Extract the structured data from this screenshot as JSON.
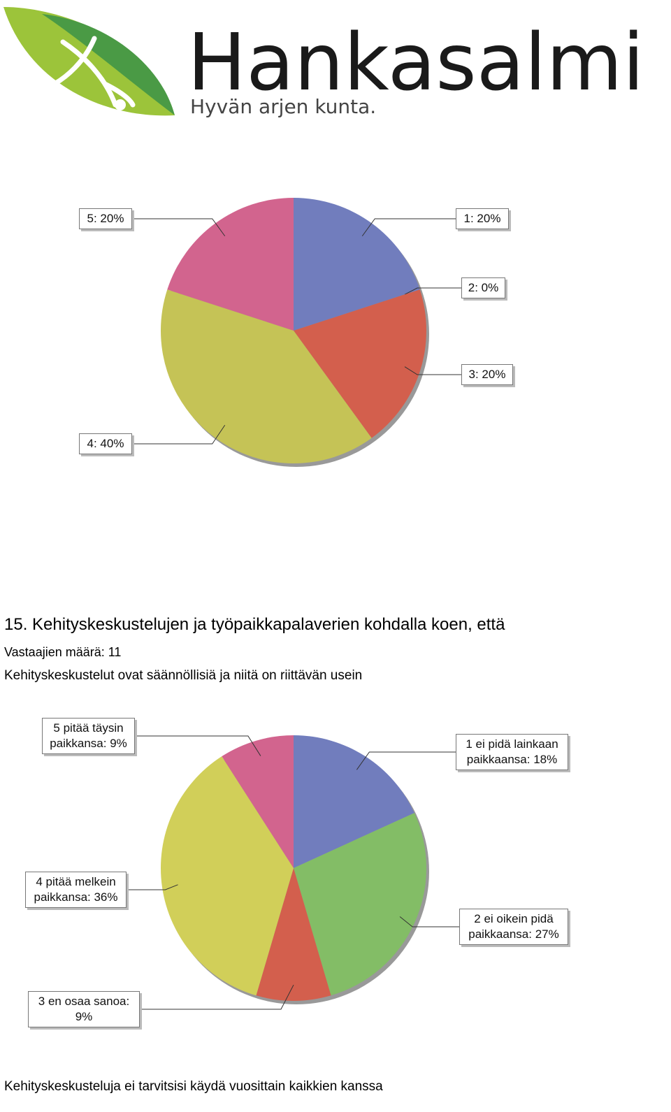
{
  "header": {
    "logo_name": "Hankasalmi",
    "tagline": "Hyvän arjen kunta."
  },
  "question": {
    "title": "15. Kehityskeskustelujen ja työpaikkapalaverien kohdalla koen, että",
    "respondents": "Vastaajien määrä: 11"
  },
  "chart_data": [
    {
      "type": "pie",
      "categories": [
        "1",
        "2",
        "3",
        "4",
        "5"
      ],
      "values": [
        20,
        0,
        20,
        40,
        20
      ],
      "value_labels": [
        "1: 20%",
        "2: 0%",
        "3: 20%",
        "4: 40%",
        "5: 20%"
      ],
      "colors": [
        "#717dbd",
        "#83bd66",
        "#d35f4d",
        "#c5c356",
        "#d2648e"
      ]
    },
    {
      "type": "pie",
      "title": "Kehityskeskustelut ovat säännöllisiä ja niitä on riittävän usein",
      "categories": [
        "1 ei pidä lainkaan paikkaansa",
        "2 ei oikein pidä paikkaansa",
        "3 en osaa sanoa",
        "4 pitää melkein paikkansa",
        "5 pitää täysin paikkansa"
      ],
      "values": [
        18,
        27,
        9,
        36,
        9
      ],
      "value_labels": [
        "1 ei pidä lainkaan paikkaansa: 18%",
        "2 ei oikein pidä paikkaansa: 27%",
        "3 en osaa sanoa: 9%",
        "4 pitää melkein paikkansa: 36%",
        "5 pitää täysin paikkansa: 9%"
      ],
      "colors": [
        "#717dbd",
        "#83bd66",
        "#d35f4d",
        "#d1cf59",
        "#d2648e"
      ]
    }
  ],
  "next_title": "Kehityskeskusteluja ei tarvitsisi käydä vuosittain kaikkien kanssa"
}
